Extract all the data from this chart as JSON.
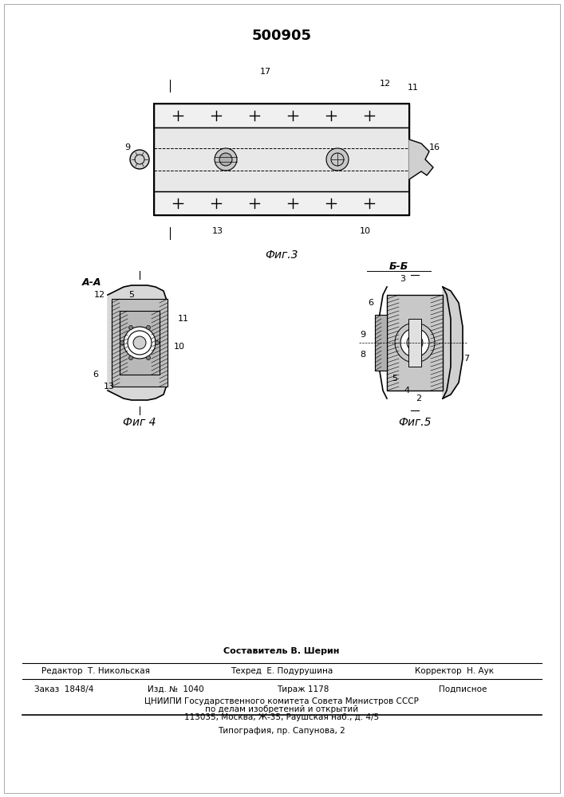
{
  "patent_number": "500905",
  "background_color": "#ffffff",
  "line_color": "#000000",
  "hatch_color": "#000000",
  "fig3_label": "Фиг.3",
  "fig4_label": "Фиг 4",
  "fig5_label": "Фиг.5",
  "section_aa": "А-А",
  "section_bb": "Б-Б",
  "footer_composer": "Составитель В. Шерин",
  "footer_editor": "Редактор  Т. Никольская",
  "footer_tech": "Техред  Е. Подурушина",
  "footer_corrector": "Корректор  Н. Аук",
  "footer_order": "Заказ  1848/4",
  "footer_izd": "Изд. №  1040",
  "footer_tirazh": "Тираж 1178",
  "footer_podpisnoe": "Подписное",
  "footer_tsniip": "ЦНИИПИ Государственного комитета Совета Министров СССР",
  "footer_po_delam": "по делам изобретений и открытий",
  "footer_address": "113035, Москва, Ж-35, Раушская наб., д. 4/5",
  "footer_tipograph": "Типография, пр. Сапунова, 2"
}
